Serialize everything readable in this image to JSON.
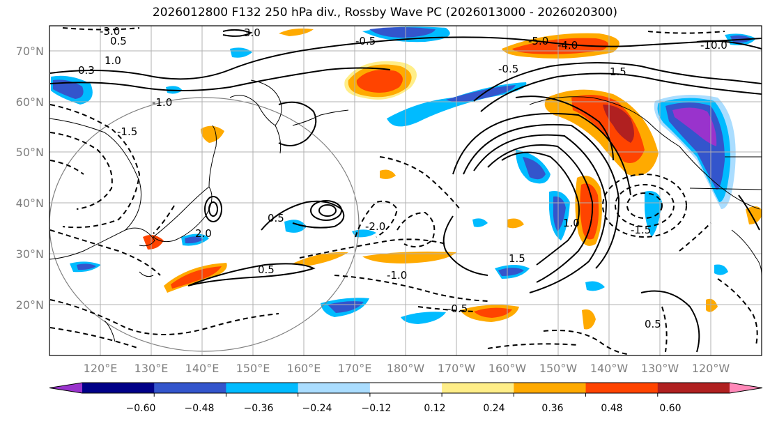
{
  "title": "2026012800 F132 250 hPa div., Rossby Wave PC (2026013000 - 2026020300)",
  "lat_labels": [
    "70°N",
    "60°N",
    "50°N",
    "40°N",
    "30°N",
    "20°N"
  ],
  "lon_labels": [
    "120°E",
    "130°E",
    "140°E",
    "150°E",
    "160°E",
    "170°E",
    "180°W",
    "170°W",
    "160°W",
    "150°W",
    "140°W",
    "130°W",
    "120°W"
  ],
  "colorbar": {
    "colors": [
      "#9933cc",
      "#000088",
      "#3355cc",
      "#00bbff",
      "#aaddff",
      "#ffffff",
      "#ffee88",
      "#ffaa00",
      "#ff4400",
      "#b02020",
      "#ff88b8"
    ],
    "tick_labels": [
      "−0.60",
      "−0.48",
      "−0.36",
      "−0.24",
      "−0.12",
      "0.12",
      "0.24",
      "0.36",
      "0.48",
      "0.60"
    ]
  },
  "contour_labels": [
    "3.0",
    "0.5",
    "1.0",
    "0.3",
    "-3.0",
    "-0.5",
    "1.5",
    "-1.0",
    "-1.5",
    "-5.0",
    "-4.0",
    "-10.0",
    "-0.5",
    "0.5",
    "2.0",
    "-2.0",
    "1.0",
    "-1.5",
    "0.5",
    "1.5",
    "-1.0",
    "-0.5",
    "0.5"
  ],
  "colors": {
    "shade_orange": "#ffaa00",
    "shade_red": "#ff4400",
    "shade_blue": "#3355cc",
    "shade_cyan": "#00bbff",
    "shade_purple": "#9933cc"
  }
}
